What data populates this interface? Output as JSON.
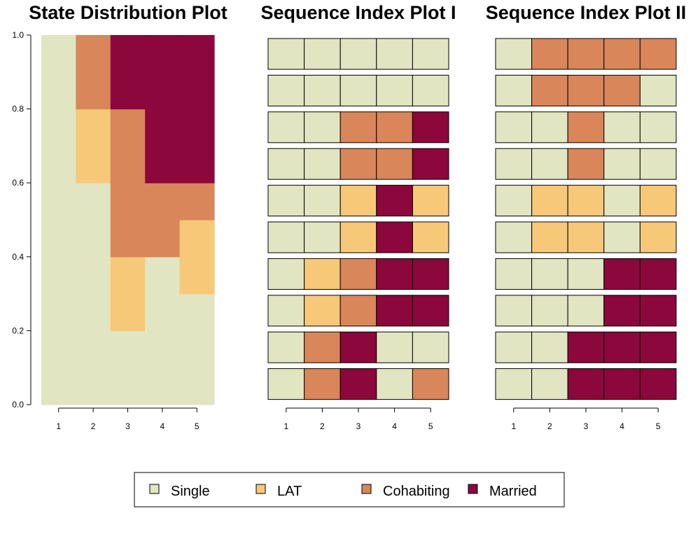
{
  "chart_data": [
    {
      "type": "stacked-bar",
      "title": "State Distribution Plot",
      "xlabel": "",
      "ylabel": "",
      "categories": [
        "1",
        "2",
        "3",
        "4",
        "5"
      ],
      "ylim": [
        0,
        1
      ],
      "yticks": [
        "0.0",
        "0.2",
        "0.4",
        "0.6",
        "0.8",
        "1.0"
      ],
      "series": [
        {
          "name": "Single",
          "values": [
            1.0,
            0.6,
            0.2,
            0.4,
            0.3
          ]
        },
        {
          "name": "LAT",
          "values": [
            0.0,
            0.2,
            0.2,
            0.0,
            0.2
          ]
        },
        {
          "name": "Cohabiting",
          "values": [
            0.0,
            0.2,
            0.4,
            0.2,
            0.1
          ]
        },
        {
          "name": "Married",
          "values": [
            0.0,
            0.0,
            0.2,
            0.4,
            0.4
          ]
        }
      ]
    },
    {
      "type": "sequence-index",
      "title": "Sequence Index Plot I",
      "categories": [
        "1",
        "2",
        "3",
        "4",
        "5"
      ],
      "sequences_top_to_bottom": [
        [
          "Single",
          "Single",
          "Single",
          "Single",
          "Single"
        ],
        [
          "Single",
          "Single",
          "Single",
          "Single",
          "Single"
        ],
        [
          "Single",
          "Single",
          "Cohabiting",
          "Cohabiting",
          "Married"
        ],
        [
          "Single",
          "Single",
          "Cohabiting",
          "Cohabiting",
          "Married"
        ],
        [
          "Single",
          "Single",
          "LAT",
          "Married",
          "LAT"
        ],
        [
          "Single",
          "Single",
          "LAT",
          "Married",
          "LAT"
        ],
        [
          "Single",
          "LAT",
          "Cohabiting",
          "Married",
          "Married"
        ],
        [
          "Single",
          "LAT",
          "Cohabiting",
          "Married",
          "Married"
        ],
        [
          "Single",
          "Cohabiting",
          "Married",
          "Single",
          "Single"
        ],
        [
          "Single",
          "Cohabiting",
          "Married",
          "Single",
          "Cohabiting"
        ]
      ]
    },
    {
      "type": "sequence-index",
      "title": "Sequence Index Plot II",
      "categories": [
        "1",
        "2",
        "3",
        "4",
        "5"
      ],
      "sequences_top_to_bottom": [
        [
          "Single",
          "Cohabiting",
          "Cohabiting",
          "Cohabiting",
          "Cohabiting"
        ],
        [
          "Single",
          "Cohabiting",
          "Cohabiting",
          "Cohabiting",
          "Single"
        ],
        [
          "Single",
          "Single",
          "Cohabiting",
          "Single",
          "Single"
        ],
        [
          "Single",
          "Single",
          "Cohabiting",
          "Single",
          "Single"
        ],
        [
          "Single",
          "LAT",
          "LAT",
          "Single",
          "LAT"
        ],
        [
          "Single",
          "LAT",
          "LAT",
          "Single",
          "LAT"
        ],
        [
          "Single",
          "Single",
          "Single",
          "Married",
          "Married"
        ],
        [
          "Single",
          "Single",
          "Single",
          "Married",
          "Married"
        ],
        [
          "Single",
          "Single",
          "Married",
          "Married",
          "Married"
        ],
        [
          "Single",
          "Single",
          "Married",
          "Married",
          "Married"
        ]
      ]
    }
  ],
  "legend": {
    "placement": "bottom",
    "items": [
      {
        "label": "Single",
        "color": "#E1E5C1"
      },
      {
        "label": "LAT",
        "color": "#F6C878"
      },
      {
        "label": "Cohabiting",
        "color": "#D8865A"
      },
      {
        "label": "Married",
        "color": "#8C073B"
      }
    ]
  }
}
